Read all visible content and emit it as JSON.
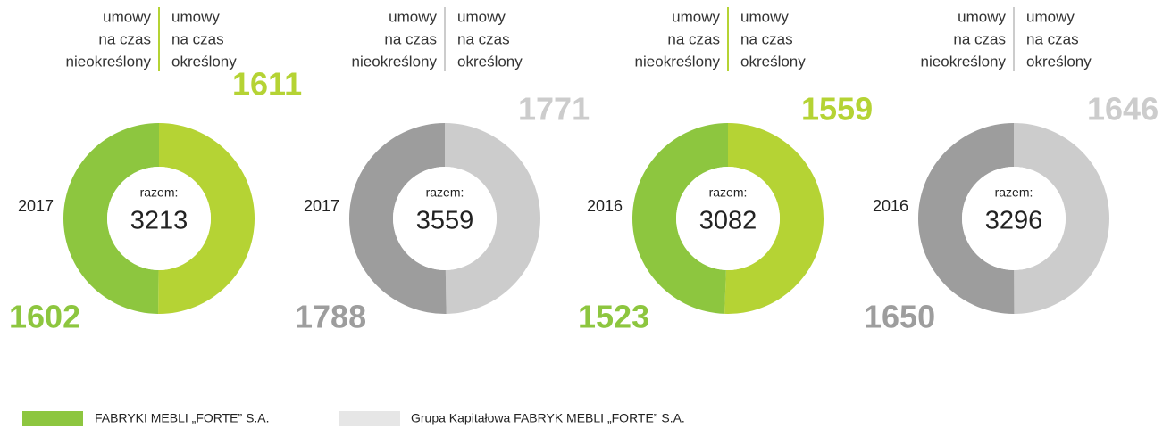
{
  "chart_data": [
    {
      "type": "pie",
      "donut": true,
      "label": "2017",
      "center_label": "razem:",
      "total": 3213,
      "categories": [
        [
          "umowy",
          "na czas",
          "nieokreślony"
        ],
        [
          "umowy",
          "na czas",
          "określony"
        ]
      ],
      "values": [
        1602,
        1611
      ],
      "colors": [
        "#8dc63f",
        "#b5d334"
      ]
    },
    {
      "type": "pie",
      "donut": true,
      "label": "2017",
      "center_label": "razem:",
      "total": 3559,
      "categories": [
        [
          "umowy",
          "na czas",
          "nieokreślony"
        ],
        [
          "umowy",
          "na czas",
          "określony"
        ]
      ],
      "values": [
        1788,
        1771
      ],
      "colors": [
        "#9d9d9d",
        "#cccccc"
      ]
    },
    {
      "type": "pie",
      "donut": true,
      "label": "2016",
      "center_label": "razem:",
      "total": 3082,
      "categories": [
        [
          "umowy",
          "na czas",
          "nieokreślony"
        ],
        [
          "umowy",
          "na czas",
          "określony"
        ]
      ],
      "values": [
        1523,
        1559
      ],
      "colors": [
        "#8dc63f",
        "#b5d334"
      ]
    },
    {
      "type": "pie",
      "donut": true,
      "label": "2016",
      "center_label": "razem:",
      "total": 3296,
      "categories": [
        [
          "umowy",
          "na czas",
          "nieokreślony"
        ],
        [
          "umowy",
          "na czas",
          "określony"
        ]
      ],
      "values": [
        1650,
        1646
      ],
      "colors": [
        "#9d9d9d",
        "#cccccc"
      ]
    }
  ],
  "legend": [
    {
      "label": "FABRYKI MEBLI „FORTE” S.A.",
      "color": "#8dc63f"
    },
    {
      "label": "Grupa Kapitałowa FABRYK MEBLI „FORTE” S.A.",
      "color": "#e6e6e6"
    }
  ]
}
